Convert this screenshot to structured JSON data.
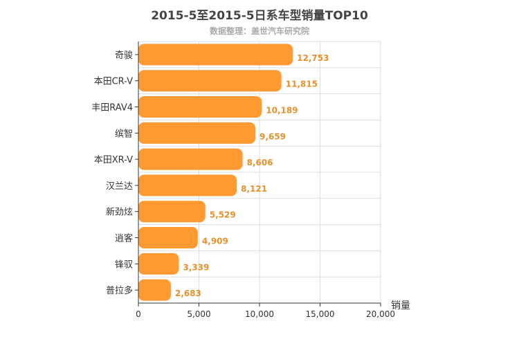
{
  "chart_data": {
    "type": "bar",
    "orientation": "horizontal",
    "title": "2015-5至2015-5日系车型销量TOP10",
    "subtitle": "数据整理：盖世汽车研究院",
    "xlabel": "销量",
    "ylabel": "",
    "categories": [
      "奇骏",
      "本田CR-V",
      "丰田RAV4",
      "缤智",
      "本田XR-V",
      "汉兰达",
      "新劲炫",
      "逍客",
      "锋驭",
      "普拉多"
    ],
    "values": [
      12753,
      11815,
      10189,
      9659,
      8606,
      8121,
      5529,
      4909,
      3339,
      2683
    ],
    "value_labels": [
      "12,753",
      "11,815",
      "10,189",
      "9,659",
      "8,606",
      "8,121",
      "5,529",
      "4,909",
      "3,339",
      "2,683"
    ],
    "xlim": [
      0,
      20000
    ],
    "xticks": [
      0,
      5000,
      10000,
      15000,
      20000
    ],
    "xtick_labels": [
      "0",
      "5,000",
      "10,000",
      "15,000",
      "20,000"
    ],
    "grid": true,
    "bar_color": "#ff9a33",
    "label_color": "#e8902a"
  }
}
